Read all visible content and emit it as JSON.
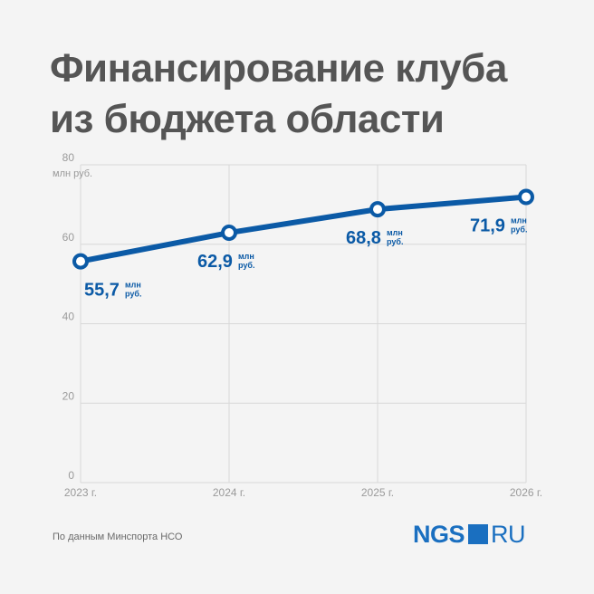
{
  "header": {
    "title_line1": "Финансирование клуба",
    "title_line2": "из бюджета области"
  },
  "footer": {
    "source": "По данным Минспорта НСО",
    "logo_brand": "NGS",
    "logo_domain": "RU"
  },
  "colors": {
    "line": "#0b5aa6",
    "label": "#0b5aa6",
    "grid": "#d8d8d8",
    "axis_text": "#9a9a9a"
  },
  "chart_data": {
    "type": "line",
    "categories": [
      "2023 г.",
      "2024 г.",
      "2025 г.",
      "2026 г."
    ],
    "series": [
      {
        "values": [
          55.7,
          62.9,
          68.8,
          71.9
        ]
      }
    ],
    "value_labels": [
      "55,7",
      "62,9",
      "68,8",
      "71,9"
    ],
    "value_unit_top": "млн",
    "value_unit_bottom": "руб.",
    "yticks": [
      0,
      20,
      40,
      60,
      80
    ],
    "y_unit": "млн руб.",
    "ylim": [
      0,
      80
    ],
    "grid": true
  }
}
